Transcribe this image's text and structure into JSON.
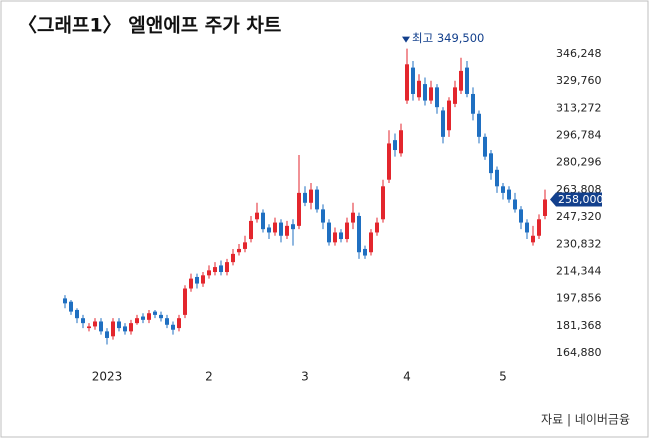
{
  "chart_data": {
    "type": "candlestick",
    "title": "〈그래프1〉 엘앤에프 주가 차트",
    "annotation": "최고 349,500",
    "current_label": "258,000",
    "source": "자료 | 네이버금융",
    "up_color": "#e3262d",
    "down_color": "#1f6fc1",
    "label_color": "#123f8c",
    "categories": [
      null,
      null,
      null,
      null,
      null,
      null,
      null,
      "2023",
      null,
      null,
      null,
      null,
      null,
      null,
      null,
      null,
      null,
      null,
      null,
      null,
      null,
      null,
      null,
      null,
      "2",
      null,
      null,
      null,
      null,
      null,
      null,
      null,
      null,
      null,
      null,
      null,
      null,
      null,
      null,
      null,
      "3",
      null,
      null,
      null,
      null,
      null,
      null,
      null,
      null,
      null,
      null,
      null,
      null,
      null,
      null,
      null,
      null,
      "4",
      null,
      null,
      null,
      null,
      null,
      null,
      null,
      null,
      null,
      null,
      null,
      null,
      null,
      null,
      null,
      "5",
      null,
      null,
      null,
      null,
      null,
      null,
      null
    ],
    "open": [
      198000,
      196000,
      191000,
      186000,
      180000,
      181000,
      184000,
      178000,
      175000,
      184000,
      181000,
      178000,
      183000,
      187000,
      185000,
      190000,
      188000,
      186000,
      182000,
      180000,
      188000,
      204000,
      211000,
      207000,
      212000,
      214000,
      218000,
      214000,
      220000,
      226000,
      228000,
      234000,
      246000,
      250000,
      241000,
      238000,
      244000,
      236000,
      243000,
      242000,
      262000,
      256000,
      264000,
      252000,
      244000,
      232000,
      238000,
      234000,
      244000,
      248000,
      228000,
      226000,
      238000,
      246000,
      270000,
      294000,
      286000,
      318000,
      338000,
      320000,
      328000,
      318000,
      326000,
      312000,
      300000,
      316000,
      324000,
      338000,
      322000,
      310000,
      296000,
      286000,
      276000,
      266000,
      264000,
      258000,
      252000,
      244000,
      232000,
      236000,
      248000
    ],
    "high": [
      200000,
      197000,
      192000,
      188000,
      183000,
      186000,
      186000,
      180000,
      186000,
      186000,
      183000,
      185000,
      188000,
      189000,
      191000,
      191000,
      190000,
      188000,
      184000,
      188000,
      206000,
      213000,
      213000,
      214000,
      218000,
      220000,
      221000,
      222000,
      228000,
      231000,
      236000,
      248000,
      256000,
      252000,
      243000,
      247000,
      246000,
      245000,
      246000,
      285000,
      266000,
      268000,
      266000,
      255000,
      246000,
      241000,
      240000,
      247000,
      256000,
      250000,
      230000,
      240000,
      247000,
      270000,
      300000,
      298000,
      304000,
      349500,
      342000,
      334000,
      332000,
      330000,
      328000,
      314000,
      320000,
      330000,
      344000,
      342000,
      326000,
      312000,
      298000,
      288000,
      278000,
      268000,
      266000,
      262000,
      254000,
      246000,
      242000,
      249000,
      264000
    ],
    "low": [
      192000,
      188000,
      183000,
      180000,
      178000,
      179000,
      176000,
      170000,
      173000,
      178000,
      176000,
      176000,
      182000,
      183000,
      183000,
      186000,
      184000,
      180000,
      176000,
      178000,
      186000,
      202000,
      204000,
      205000,
      210000,
      212000,
      212000,
      212000,
      218000,
      224000,
      226000,
      232000,
      244000,
      238000,
      234000,
      236000,
      232000,
      234000,
      230000,
      240000,
      254000,
      252000,
      250000,
      240000,
      230000,
      230000,
      232000,
      232000,
      240000,
      222000,
      222000,
      224000,
      236000,
      244000,
      268000,
      284000,
      284000,
      316000,
      318000,
      318000,
      315000,
      316000,
      310000,
      292000,
      296000,
      314000,
      322000,
      320000,
      306000,
      292000,
      282000,
      270000,
      262000,
      258000,
      256000,
      250000,
      240000,
      234000,
      230000,
      234000,
      246000
    ],
    "close": [
      195000,
      190000,
      186000,
      183000,
      181000,
      184000,
      178000,
      174000,
      184000,
      180000,
      178000,
      183000,
      186000,
      185000,
      189000,
      188000,
      186000,
      182000,
      179000,
      186000,
      204000,
      210000,
      207000,
      212000,
      215000,
      217000,
      214000,
      220000,
      225000,
      228000,
      232000,
      245000,
      250000,
      240000,
      238000,
      244000,
      236000,
      242000,
      240000,
      262000,
      256000,
      264000,
      252000,
      244000,
      232000,
      238000,
      234000,
      244000,
      250000,
      226000,
      224000,
      238000,
      244000,
      266000,
      292000,
      288000,
      300000,
      340000,
      322000,
      330000,
      318000,
      326000,
      314000,
      296000,
      318000,
      326000,
      336000,
      322000,
      310000,
      296000,
      284000,
      274000,
      266000,
      262000,
      258000,
      252000,
      244000,
      238000,
      236000,
      246000,
      258000
    ],
    "ylim": [
      164880,
      346248
    ],
    "yticks": [
      {
        "value": 164880,
        "label": "164,880"
      },
      {
        "value": 181368,
        "label": "181,368"
      },
      {
        "value": 197856,
        "label": "197,856"
      },
      {
        "value": 214344,
        "label": "214,344"
      },
      {
        "value": 230832,
        "label": "230,832"
      },
      {
        "value": 247320,
        "label": "247,320"
      },
      {
        "value": 263808,
        "label": "263,808"
      },
      {
        "value": 280296,
        "label": "280,296"
      },
      {
        "value": 296784,
        "label": "296,784"
      },
      {
        "value": 313272,
        "label": "313,272"
      },
      {
        "value": 329760,
        "label": "329,760"
      },
      {
        "value": 346248,
        "label": "346,248"
      }
    ]
  }
}
